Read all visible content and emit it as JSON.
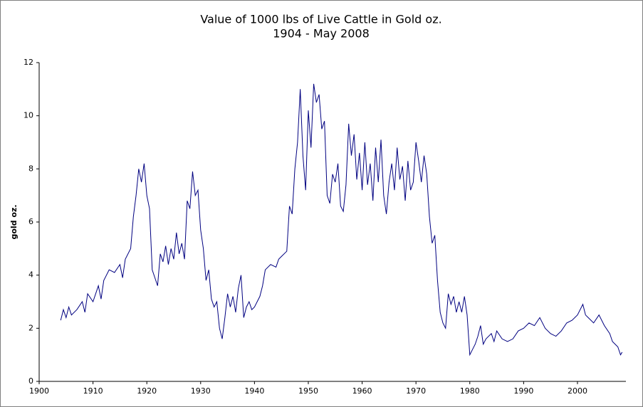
{
  "chart_data": {
    "type": "line",
    "title": "Value of 1000 lbs of Live Cattle in Gold oz.",
    "subtitle": "1904 - May 2008",
    "y_label": "gold oz.",
    "xlim": [
      1900,
      2009
    ],
    "xticks": [
      1900,
      1910,
      1920,
      1930,
      1940,
      1950,
      1960,
      1970,
      1980,
      1990,
      2000
    ],
    "ylim": [
      0,
      12
    ],
    "yticks": [
      0,
      2,
      4,
      6,
      8,
      10,
      12
    ],
    "grid": false,
    "series": [
      {
        "color": "#000080",
        "x": [
          1904,
          1904.5,
          1905,
          1905.5,
          1906,
          1907,
          1908,
          1908.5,
          1909,
          1910,
          1911,
          1911.5,
          1912,
          1913,
          1914,
          1915,
          1915.5,
          1916,
          1917,
          1917.5,
          1918,
          1918.5,
          1919,
          1919.5,
          1920,
          1920.5,
          1921,
          1921.5,
          1922,
          1922.5,
          1923,
          1923.5,
          1924,
          1924.5,
          1925,
          1925.5,
          1926,
          1926.5,
          1927,
          1927.5,
          1928,
          1928.5,
          1929,
          1929.5,
          1930,
          1930.5,
          1931,
          1931.5,
          1932,
          1932.5,
          1933,
          1933.5,
          1934,
          1934.5,
          1935,
          1935.5,
          1936,
          1936.5,
          1937,
          1937.5,
          1938,
          1938.5,
          1939,
          1939.5,
          1940,
          1941,
          1941.5,
          1942,
          1943,
          1944,
          1944.5,
          1945,
          1946,
          1946.5,
          1947,
          1947.5,
          1948,
          1948.5,
          1949,
          1949.5,
          1950,
          1950.5,
          1951,
          1951.5,
          1952,
          1952.5,
          1953,
          1953.5,
          1954,
          1954.5,
          1955,
          1955.5,
          1956,
          1956.5,
          1957,
          1957.5,
          1958,
          1958.5,
          1959,
          1959.5,
          1960,
          1960.5,
          1961,
          1961.5,
          1962,
          1962.5,
          1963,
          1963.5,
          1964,
          1964.5,
          1965,
          1965.5,
          1966,
          1966.5,
          1967,
          1967.5,
          1968,
          1968.5,
          1969,
          1969.5,
          1970,
          1970.5,
          1971,
          1971.5,
          1972,
          1972.5,
          1973,
          1973.5,
          1974,
          1974.5,
          1975,
          1975.5,
          1976,
          1976.5,
          1977,
          1977.5,
          1978,
          1978.5,
          1979,
          1979.5,
          1980,
          1980.5,
          1981,
          1981.5,
          1982,
          1982.5,
          1983,
          1984,
          1984.5,
          1985,
          1986,
          1987,
          1988,
          1989,
          1990,
          1991,
          1992,
          1993,
          1994,
          1995,
          1996,
          1997,
          1998,
          1999,
          2000,
          2001,
          2001.5,
          2002,
          2003,
          2004,
          2005,
          2006,
          2006.5,
          2007,
          2007.5,
          2008,
          2008.3
        ],
        "values": [
          2.3,
          2.7,
          2.4,
          2.8,
          2.5,
          2.7,
          3.0,
          2.6,
          3.3,
          3.0,
          3.6,
          3.1,
          3.8,
          4.2,
          4.1,
          4.4,
          3.9,
          4.6,
          5.0,
          6.2,
          7.0,
          8.0,
          7.5,
          8.2,
          7.0,
          6.5,
          4.2,
          3.9,
          3.6,
          4.8,
          4.5,
          5.1,
          4.4,
          5.0,
          4.6,
          5.6,
          4.8,
          5.2,
          4.6,
          6.8,
          6.5,
          7.9,
          7.0,
          7.2,
          5.7,
          5.0,
          3.8,
          4.2,
          3.1,
          2.8,
          3.0,
          2.0,
          1.6,
          2.4,
          3.3,
          2.8,
          3.2,
          2.6,
          3.5,
          4.0,
          2.4,
          2.8,
          3.0,
          2.7,
          2.8,
          3.2,
          3.6,
          4.2,
          4.4,
          4.3,
          4.6,
          4.7,
          4.9,
          6.6,
          6.3,
          8.0,
          9.0,
          11.0,
          8.5,
          7.2,
          10.2,
          8.8,
          11.2,
          10.5,
          10.8,
          9.5,
          9.8,
          7.0,
          6.7,
          7.8,
          7.5,
          8.2,
          6.6,
          6.4,
          7.4,
          9.7,
          8.5,
          9.3,
          7.6,
          8.6,
          7.2,
          9.0,
          7.4,
          8.2,
          6.8,
          8.8,
          7.5,
          9.1,
          7.0,
          6.3,
          7.5,
          8.2,
          7.2,
          8.8,
          7.6,
          8.1,
          6.8,
          8.3,
          7.2,
          7.5,
          9.0,
          8.3,
          7.5,
          8.5,
          7.8,
          6.2,
          5.2,
          5.5,
          3.8,
          2.6,
          2.2,
          2.0,
          3.3,
          2.9,
          3.2,
          2.6,
          3.0,
          2.6,
          3.2,
          2.5,
          1.0,
          1.2,
          1.4,
          1.7,
          2.1,
          1.4,
          1.6,
          1.8,
          1.5,
          1.9,
          1.6,
          1.5,
          1.6,
          1.9,
          2.0,
          2.2,
          2.1,
          2.4,
          2.0,
          1.8,
          1.7,
          1.9,
          2.2,
          2.3,
          2.5,
          2.9,
          2.5,
          2.4,
          2.2,
          2.5,
          2.1,
          1.8,
          1.5,
          1.4,
          1.3,
          1.0,
          1.1
        ]
      }
    ]
  }
}
